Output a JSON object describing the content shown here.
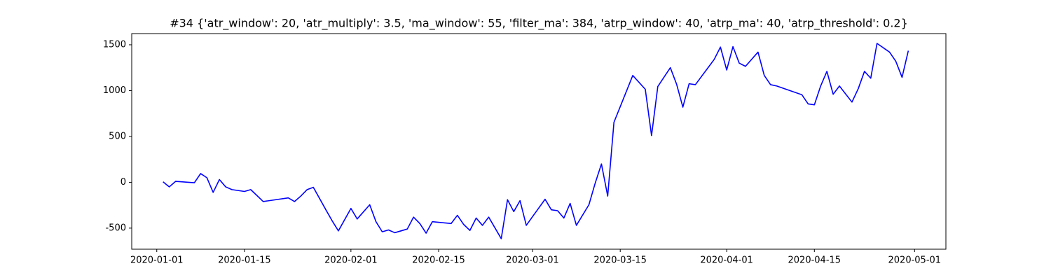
{
  "chart_data": {
    "type": "line",
    "title": "#34 {'atr_window': 20, 'atr_multiply': 3.5, 'ma_window': 55, 'filter_ma': 384, 'atrp_window': 40, 'atrp_ma': 40, 'atrp_threshold': 0.2}",
    "x": [
      "2020-01-02",
      "2020-01-03",
      "2020-01-04",
      "2020-01-07",
      "2020-01-08",
      "2020-01-09",
      "2020-01-10",
      "2020-01-11",
      "2020-01-12",
      "2020-01-13",
      "2020-01-15",
      "2020-01-16",
      "2020-01-17",
      "2020-01-18",
      "2020-01-22",
      "2020-01-23",
      "2020-01-24",
      "2020-01-25",
      "2020-01-26",
      "2020-01-28",
      "2020-01-29",
      "2020-01-30",
      "2020-02-01",
      "2020-02-02",
      "2020-02-04",
      "2020-02-05",
      "2020-02-06",
      "2020-02-07",
      "2020-02-08",
      "2020-02-10",
      "2020-02-11",
      "2020-02-12",
      "2020-02-13",
      "2020-02-14",
      "2020-02-17",
      "2020-02-18",
      "2020-02-19",
      "2020-02-20",
      "2020-02-21",
      "2020-02-22",
      "2020-02-23",
      "2020-02-25",
      "2020-02-26",
      "2020-02-27",
      "2020-02-28",
      "2020-02-29",
      "2020-03-03",
      "2020-03-04",
      "2020-03-05",
      "2020-03-06",
      "2020-03-07",
      "2020-03-08",
      "2020-03-10",
      "2020-03-11",
      "2020-03-12",
      "2020-03-13",
      "2020-03-14",
      "2020-03-17",
      "2020-03-19",
      "2020-03-20",
      "2020-03-21",
      "2020-03-23",
      "2020-03-24",
      "2020-03-25",
      "2020-03-26",
      "2020-03-27",
      "2020-03-30",
      "2020-03-31",
      "2020-04-01",
      "2020-04-02",
      "2020-04-03",
      "2020-04-04",
      "2020-04-06",
      "2020-04-07",
      "2020-04-08",
      "2020-04-09",
      "2020-04-13",
      "2020-04-14",
      "2020-04-15",
      "2020-04-16",
      "2020-04-17",
      "2020-04-18",
      "2020-04-19",
      "2020-04-21",
      "2020-04-22",
      "2020-04-23",
      "2020-04-24",
      "2020-04-25",
      "2020-04-27",
      "2020-04-28",
      "2020-04-29",
      "2020-04-30"
    ],
    "series": [
      {
        "color": "#0000ff",
        "values": [
          5,
          -50,
          10,
          -5,
          95,
          50,
          -110,
          30,
          -50,
          -80,
          -100,
          -80,
          -145,
          -210,
          -170,
          -210,
          -150,
          -80,
          -55,
          -300,
          -420,
          -530,
          -285,
          -400,
          -245,
          -430,
          -540,
          -520,
          -550,
          -510,
          -380,
          -450,
          -555,
          -430,
          -450,
          -360,
          -460,
          -525,
          -390,
          -470,
          -380,
          -615,
          -190,
          -320,
          -200,
          -470,
          -185,
          -300,
          -310,
          -390,
          -230,
          -470,
          -245,
          -10,
          200,
          -150,
          655,
          1165,
          1015,
          510,
          1045,
          1250,
          1070,
          820,
          1075,
          1065,
          1340,
          1475,
          1225,
          1480,
          1300,
          1265,
          1420,
          1165,
          1065,
          1050,
          955,
          855,
          845,
          1050,
          1210,
          960,
          1050,
          875,
          1020,
          1210,
          1135,
          1515,
          1420,
          1320,
          1145,
          1435
        ]
      }
    ],
    "xlim": [
      "2019-12-28",
      "2020-05-06"
    ],
    "xticks": [
      "2020-01-01",
      "2020-01-15",
      "2020-02-01",
      "2020-02-15",
      "2020-03-01",
      "2020-03-15",
      "2020-04-01",
      "2020-04-15",
      "2020-05-01"
    ],
    "ylim": [
      -730,
      1622
    ],
    "yticks": [
      -500,
      0,
      500,
      1000,
      1500
    ]
  }
}
